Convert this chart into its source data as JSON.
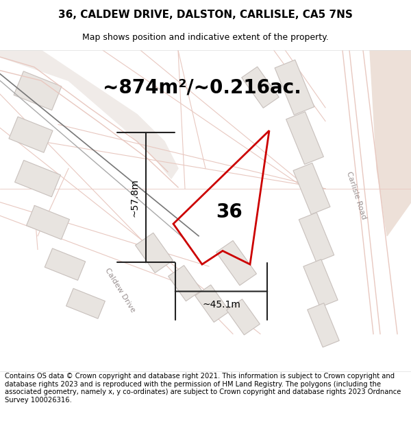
{
  "title": "36, CALDEW DRIVE, DALSTON, CARLISLE, CA5 7NS",
  "subtitle": "Map shows position and indicative extent of the property.",
  "area_text": "~874m²/~0.216ac.",
  "dim_width": "~45.1m",
  "dim_height": "~57.8m",
  "property_number": "36",
  "road_label_right": "Carlisle Road",
  "road_label_bottom": "Caldew Drive",
  "copyright_text": "Contains OS data © Crown copyright and database right 2021. This information is subject to Crown copyright and database rights 2023 and is reproduced with the permission of HM Land Registry. The polygons (including the associated geometry, namely x, y co-ordinates) are subject to Crown copyright and database rights 2023 Ordnance Survey 100026316.",
  "bg_color": "#ffffff",
  "map_bg": "#ffffff",
  "road_fill": "#f0ebe8",
  "road_outline": "#e8c8c0",
  "building_fill": "#e8e4e0",
  "building_outline": "#c8c0bc",
  "tan_fill": "#ede0d8",
  "property_color": "#cc0000",
  "dim_color": "#222222",
  "road_label_color": "#999090",
  "dark_road_color": "#888888",
  "area_fontsize": 20,
  "title_fontsize": 11,
  "subtitle_fontsize": 9,
  "copyright_fontsize": 7.2,
  "number_fontsize": 20,
  "dim_fontsize": 10,
  "road_label_fontsize": 8,
  "property_lw": 2.0
}
